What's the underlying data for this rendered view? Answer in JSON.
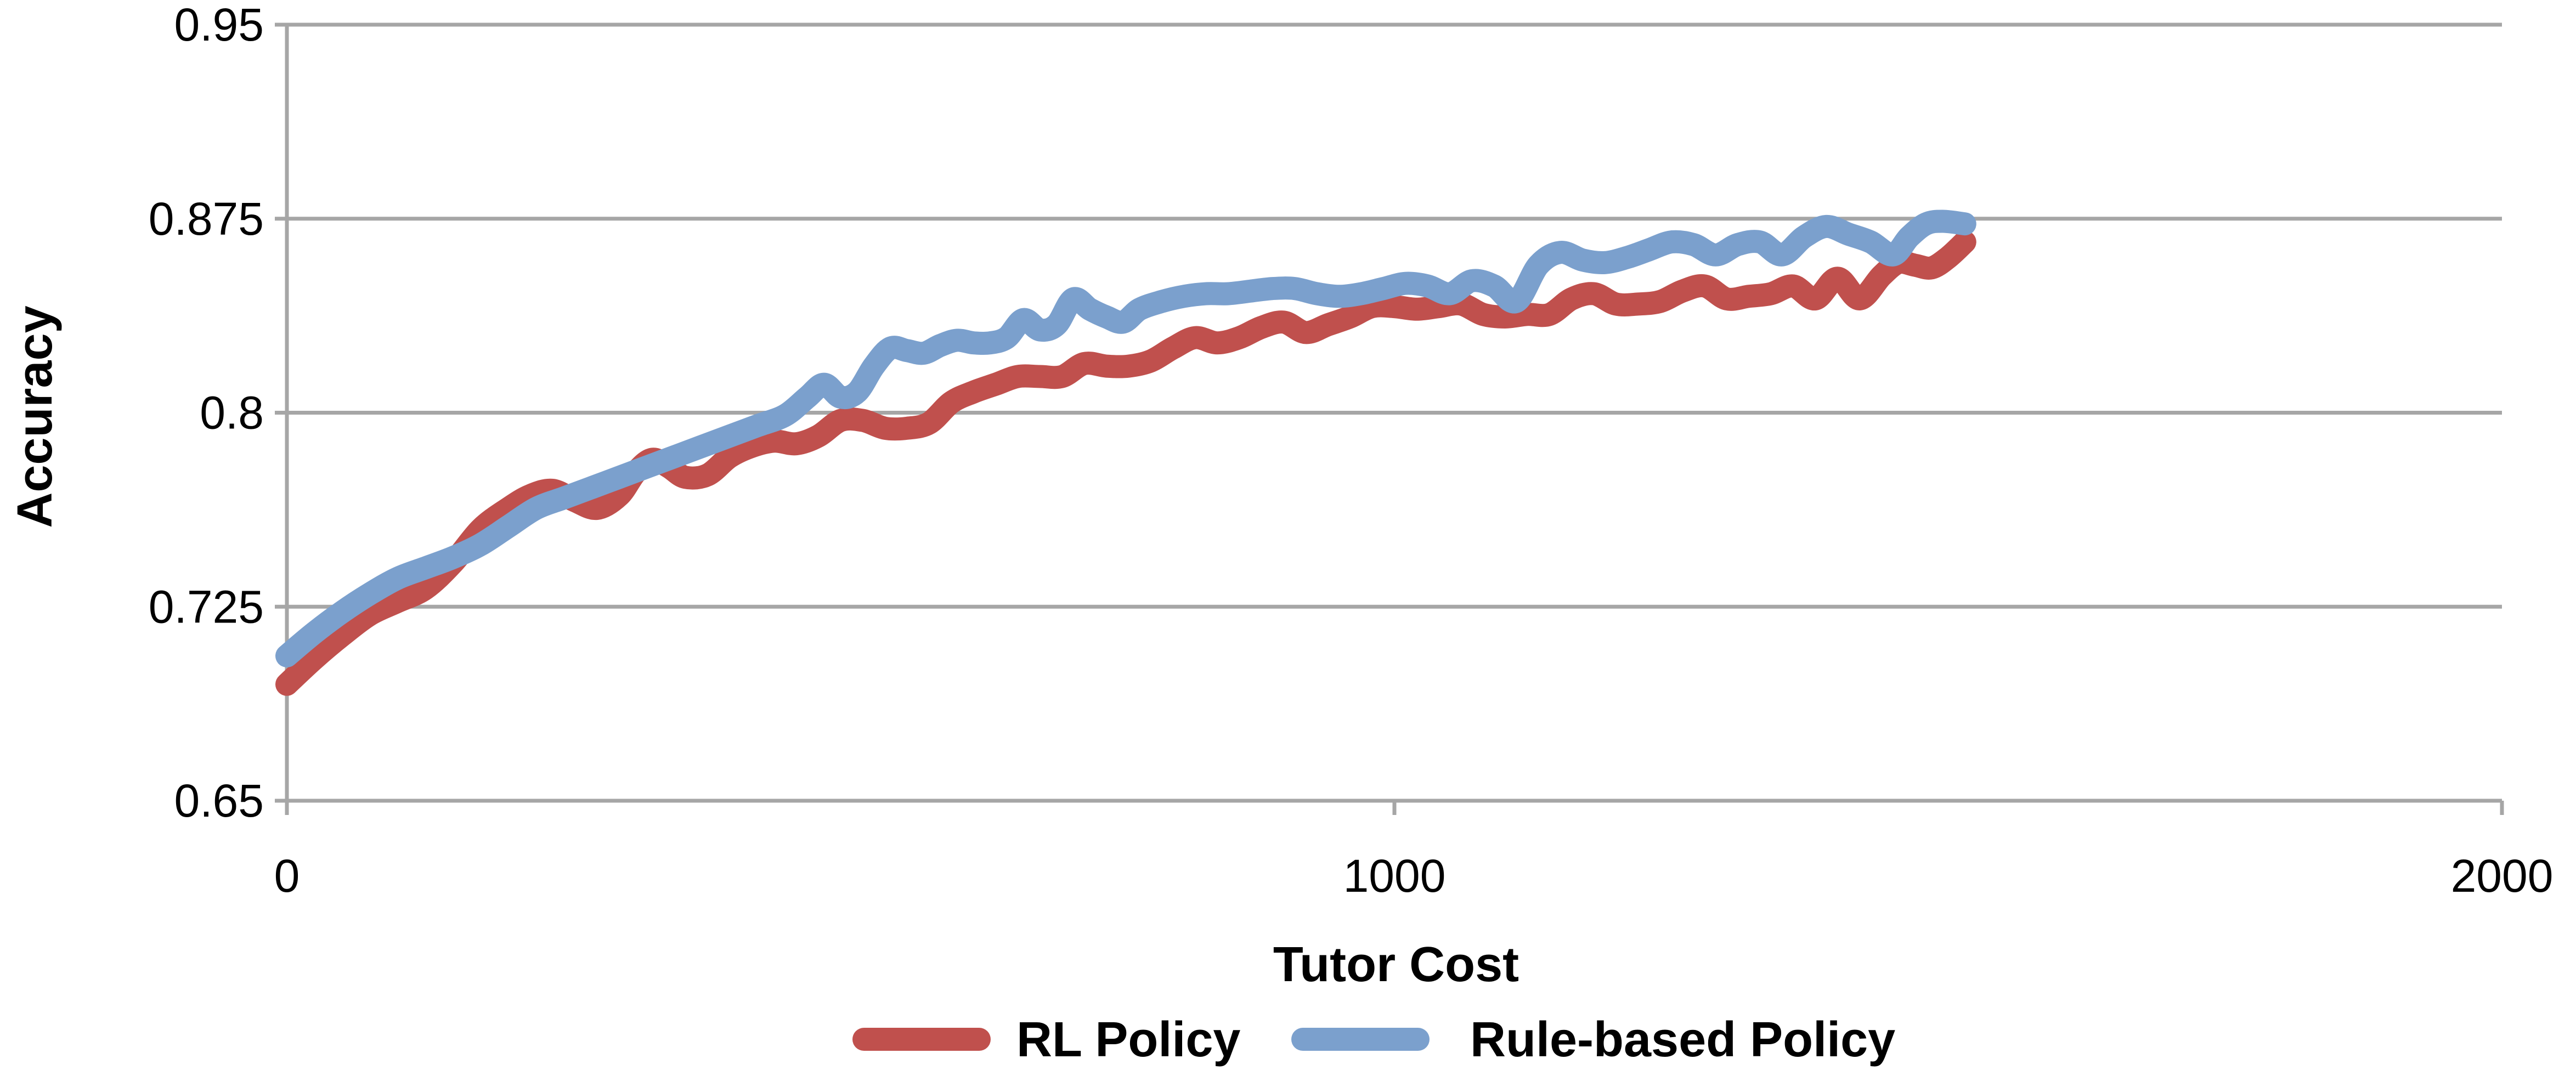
{
  "chart_data": {
    "type": "line",
    "title": "",
    "xlabel": "Tutor Cost",
    "ylabel": "Accuracy",
    "xlim": [
      0,
      2000
    ],
    "ylim": [
      0.65,
      0.95
    ],
    "x_ticks": [
      0,
      1000,
      2000
    ],
    "x_tick_labels": [
      "0",
      "1000",
      "2000"
    ],
    "y_ticks": [
      0.65,
      0.725,
      0.8,
      0.875,
      0.95
    ],
    "y_tick_labels": [
      "0.65",
      "0.725",
      "0.8",
      "0.875",
      "0.95"
    ],
    "grid": "horizontal",
    "legend_position": "bottom",
    "series": [
      {
        "name": "RL Policy",
        "color": "#c0504d",
        "points": [
          [
            0,
            0.695
          ],
          [
            25,
            0.705
          ],
          [
            50,
            0.714
          ],
          [
            75,
            0.722
          ],
          [
            100,
            0.727
          ],
          [
            125,
            0.732
          ],
          [
            150,
            0.742
          ],
          [
            175,
            0.755
          ],
          [
            200,
            0.763
          ],
          [
            220,
            0.768
          ],
          [
            240,
            0.77
          ],
          [
            260,
            0.766
          ],
          [
            280,
            0.763
          ],
          [
            300,
            0.768
          ],
          [
            315,
            0.777
          ],
          [
            330,
            0.782
          ],
          [
            345,
            0.779
          ],
          [
            360,
            0.775
          ],
          [
            380,
            0.776
          ],
          [
            400,
            0.783
          ],
          [
            420,
            0.787
          ],
          [
            440,
            0.789
          ],
          [
            460,
            0.788
          ],
          [
            480,
            0.791
          ],
          [
            500,
            0.797
          ],
          [
            520,
            0.797
          ],
          [
            540,
            0.794
          ],
          [
            560,
            0.794
          ],
          [
            580,
            0.796
          ],
          [
            600,
            0.804
          ],
          [
            620,
            0.808
          ],
          [
            640,
            0.811
          ],
          [
            660,
            0.814
          ],
          [
            680,
            0.814
          ],
          [
            700,
            0.814
          ],
          [
            720,
            0.819
          ],
          [
            740,
            0.818
          ],
          [
            760,
            0.818
          ],
          [
            780,
            0.82
          ],
          [
            800,
            0.825
          ],
          [
            820,
            0.829
          ],
          [
            840,
            0.827
          ],
          [
            860,
            0.829
          ],
          [
            880,
            0.833
          ],
          [
            900,
            0.835
          ],
          [
            920,
            0.831
          ],
          [
            940,
            0.834
          ],
          [
            960,
            0.837
          ],
          [
            980,
            0.841
          ],
          [
            1000,
            0.841
          ],
          [
            1020,
            0.84
          ],
          [
            1040,
            0.841
          ],
          [
            1060,
            0.842
          ],
          [
            1080,
            0.838
          ],
          [
            1100,
            0.837
          ],
          [
            1120,
            0.838
          ],
          [
            1140,
            0.838
          ],
          [
            1160,
            0.844
          ],
          [
            1180,
            0.846
          ],
          [
            1200,
            0.842
          ],
          [
            1220,
            0.842
          ],
          [
            1240,
            0.843
          ],
          [
            1260,
            0.847
          ],
          [
            1280,
            0.849
          ],
          [
            1300,
            0.844
          ],
          [
            1320,
            0.845
          ],
          [
            1340,
            0.846
          ],
          [
            1360,
            0.849
          ],
          [
            1380,
            0.844
          ],
          [
            1400,
            0.852
          ],
          [
            1420,
            0.844
          ],
          [
            1440,
            0.853
          ],
          [
            1455,
            0.858
          ],
          [
            1470,
            0.857
          ],
          [
            1485,
            0.856
          ],
          [
            1500,
            0.86
          ],
          [
            1515,
            0.866
          ]
        ]
      },
      {
        "name": "Rule-based Policy",
        "color": "#7ba0cd",
        "points": [
          [
            0,
            0.706
          ],
          [
            25,
            0.715
          ],
          [
            50,
            0.723
          ],
          [
            75,
            0.73
          ],
          [
            100,
            0.736
          ],
          [
            125,
            0.74
          ],
          [
            150,
            0.744
          ],
          [
            175,
            0.749
          ],
          [
            200,
            0.756
          ],
          [
            225,
            0.763
          ],
          [
            250,
            0.767
          ],
          [
            275,
            0.771
          ],
          [
            300,
            0.775
          ],
          [
            325,
            0.779
          ],
          [
            350,
            0.783
          ],
          [
            375,
            0.787
          ],
          [
            400,
            0.791
          ],
          [
            425,
            0.795
          ],
          [
            450,
            0.799
          ],
          [
            470,
            0.806
          ],
          [
            485,
            0.811
          ],
          [
            500,
            0.806
          ],
          [
            515,
            0.808
          ],
          [
            530,
            0.818
          ],
          [
            545,
            0.825
          ],
          [
            560,
            0.824
          ],
          [
            575,
            0.823
          ],
          [
            590,
            0.826
          ],
          [
            605,
            0.828
          ],
          [
            620,
            0.827
          ],
          [
            635,
            0.827
          ],
          [
            650,
            0.829
          ],
          [
            665,
            0.836
          ],
          [
            680,
            0.832
          ],
          [
            695,
            0.834
          ],
          [
            710,
            0.844
          ],
          [
            725,
            0.84
          ],
          [
            740,
            0.837
          ],
          [
            755,
            0.835
          ],
          [
            770,
            0.84
          ],
          [
            790,
            0.843
          ],
          [
            810,
            0.845
          ],
          [
            830,
            0.846
          ],
          [
            850,
            0.846
          ],
          [
            870,
            0.847
          ],
          [
            890,
            0.848
          ],
          [
            910,
            0.848
          ],
          [
            930,
            0.846
          ],
          [
            950,
            0.845
          ],
          [
            970,
            0.846
          ],
          [
            990,
            0.848
          ],
          [
            1010,
            0.85
          ],
          [
            1030,
            0.849
          ],
          [
            1050,
            0.846
          ],
          [
            1070,
            0.851
          ],
          [
            1090,
            0.849
          ],
          [
            1110,
            0.843
          ],
          [
            1130,
            0.857
          ],
          [
            1150,
            0.862
          ],
          [
            1170,
            0.859
          ],
          [
            1190,
            0.858
          ],
          [
            1210,
            0.86
          ],
          [
            1230,
            0.863
          ],
          [
            1250,
            0.866
          ],
          [
            1270,
            0.865
          ],
          [
            1290,
            0.861
          ],
          [
            1310,
            0.865
          ],
          [
            1330,
            0.866
          ],
          [
            1350,
            0.861
          ],
          [
            1370,
            0.868
          ],
          [
            1390,
            0.872
          ],
          [
            1410,
            0.869
          ],
          [
            1430,
            0.866
          ],
          [
            1450,
            0.861
          ],
          [
            1465,
            0.868
          ],
          [
            1480,
            0.873
          ],
          [
            1495,
            0.874
          ],
          [
            1515,
            0.873
          ]
        ]
      }
    ]
  }
}
